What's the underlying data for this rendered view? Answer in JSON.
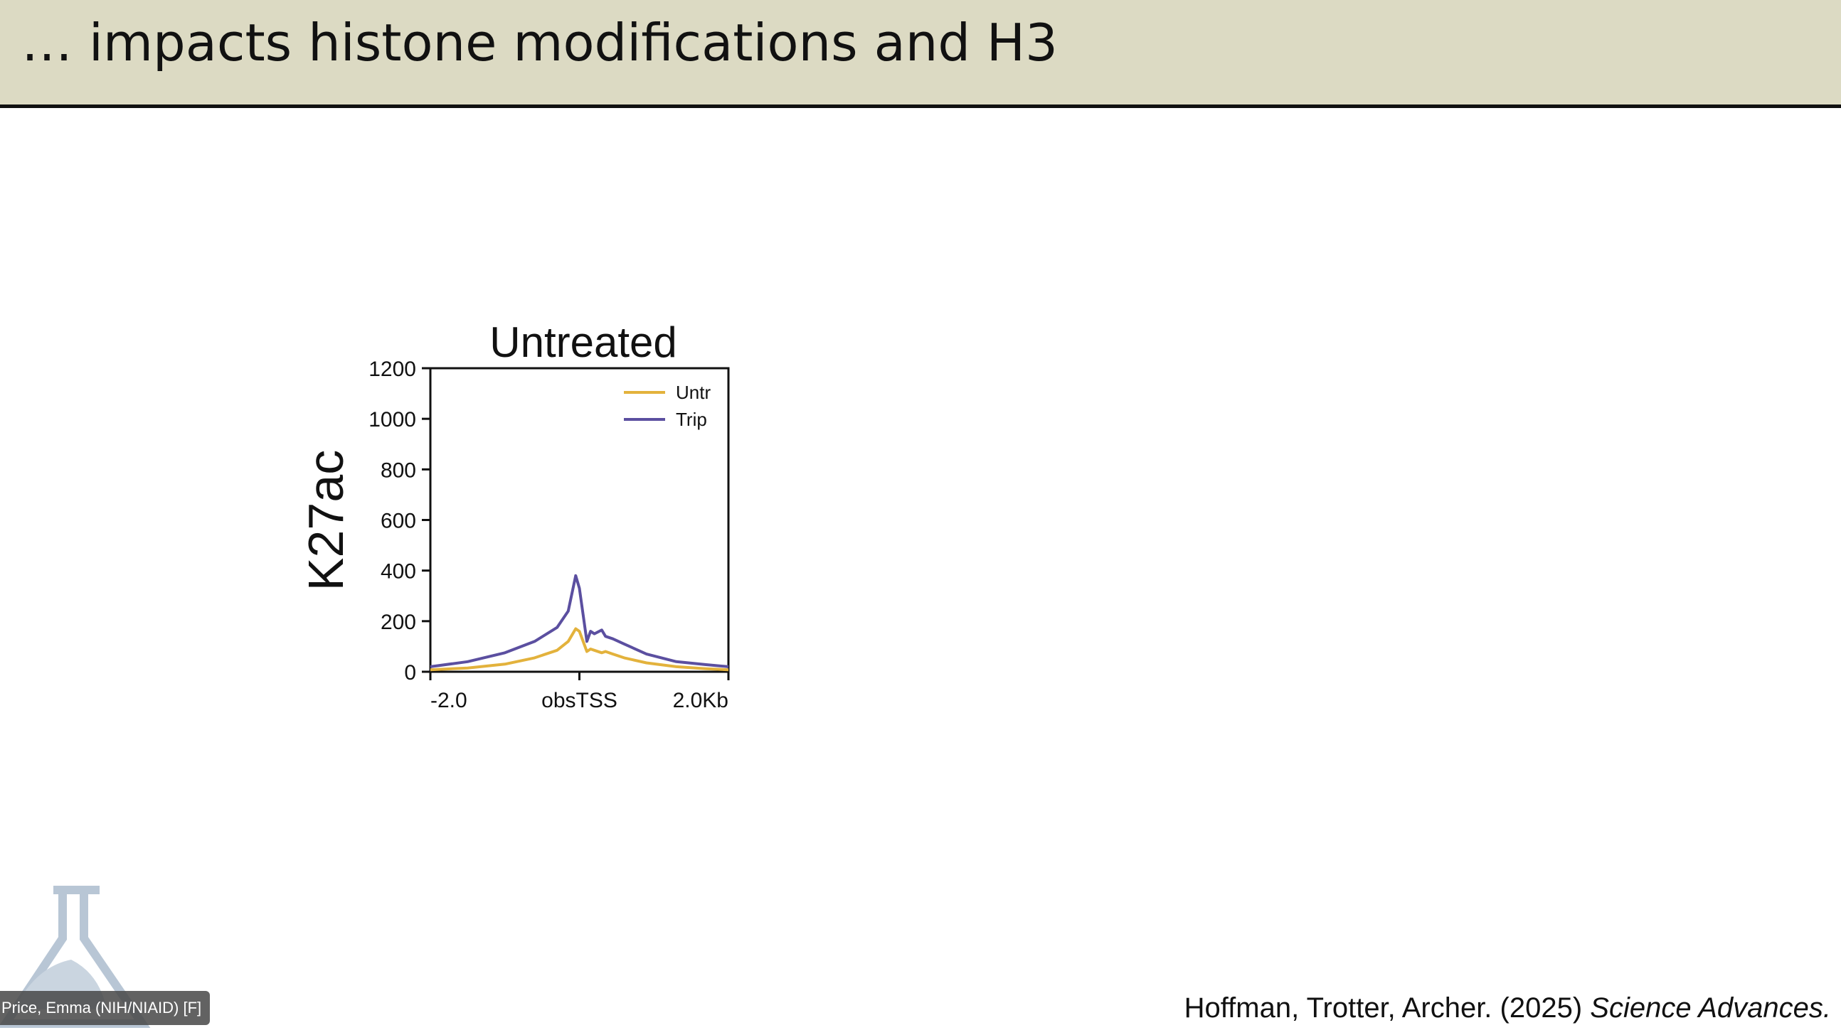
{
  "slide": {
    "title": "… impacts histone modifications and H3",
    "citation_authors": "Hoffman, Trotter, Archer. (2025) ",
    "citation_journal": "Science Advances."
  },
  "participant": {
    "name": "Price, Emma (NIH/NIAID) [F]"
  },
  "chart_data": {
    "type": "line",
    "title": "Untreated",
    "ylabel": "K27ac",
    "xlabel": "",
    "ylim": [
      0,
      1200
    ],
    "yticks": [
      0,
      200,
      400,
      600,
      800,
      1000,
      1200
    ],
    "xlim": [
      -2.0,
      2.0
    ],
    "xtick_labels": [
      "-2.0",
      "obsTSS",
      "2.0Kb"
    ],
    "xtick_values": [
      -2.0,
      0,
      2.0
    ],
    "legend_position": "top-right",
    "x": [
      -2.0,
      -1.5,
      -1.0,
      -0.6,
      -0.3,
      -0.15,
      -0.05,
      0.0,
      0.1,
      0.15,
      0.2,
      0.3,
      0.35,
      0.45,
      0.6,
      0.9,
      1.3,
      1.7,
      2.0
    ],
    "series": [
      {
        "name": "Untr",
        "color": "#e3b23c",
        "values": [
          8,
          15,
          30,
          55,
          85,
          120,
          170,
          160,
          80,
          90,
          85,
          75,
          80,
          70,
          55,
          35,
          20,
          12,
          8
        ]
      },
      {
        "name": "Trip",
        "color": "#5b4fa0",
        "values": [
          20,
          40,
          75,
          120,
          175,
          240,
          380,
          330,
          120,
          160,
          150,
          165,
          140,
          130,
          110,
          70,
          40,
          28,
          20
        ]
      }
    ]
  }
}
